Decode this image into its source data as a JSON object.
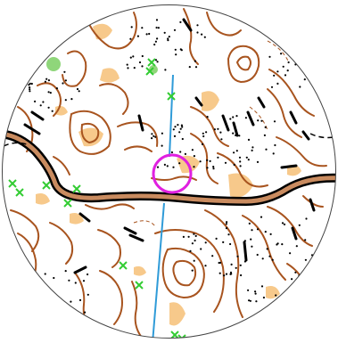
{
  "map": {
    "kind": "orienteering-map-crop",
    "shape": "circle",
    "colors": {
      "background": "#ffffff",
      "contour": "#a8541f",
      "road_fill": "#c98b5f",
      "road_casing": "#000000",
      "open_land": "#f7c98b",
      "green": "#8fd67a",
      "cross_marker": "#33cc33",
      "route_line": "#2f9bd8",
      "control_circle": "#e020e0",
      "rock": "#000000"
    },
    "features": {
      "road_count": 1,
      "control_circle_count": 1,
      "route_segment_count": 2,
      "cross_marker_count": 12
    }
  }
}
